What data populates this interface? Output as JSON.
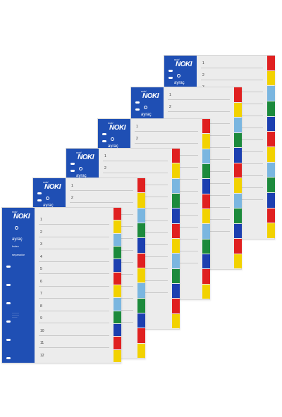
{
  "brand": {
    "logo_text": "NOKI",
    "logo_prefix": "noki",
    "band_color": "#1f4fb4"
  },
  "front_sheet": {
    "band_labels": [
      "ayraç",
      "Index",
      "separador"
    ],
    "row_numbers": [
      "1",
      "2",
      "3",
      "4",
      "5",
      "6",
      "7",
      "8",
      "9",
      "10",
      "11",
      "12"
    ]
  },
  "sheets": [
    {
      "label": "ayraç",
      "row_numbers": [
        "1",
        "2",
        "3"
      ]
    },
    {
      "label": "ayraç",
      "row_numbers": [
        "1",
        "2"
      ]
    },
    {
      "label": "ayraç",
      "row_numbers": [
        "1",
        "2"
      ]
    },
    {
      "label": "ayraç",
      "row_numbers": [
        "1",
        "2"
      ]
    },
    {
      "label": "ayraç",
      "row_numbers": [
        "1",
        "2"
      ]
    }
  ],
  "tab_colors": [
    "#e02020",
    "#f2d200",
    "#7ab6e0",
    "#1c8a3c",
    "#1c3fb0",
    "#e02020",
    "#f2d200",
    "#7ab6e0",
    "#1c8a3c",
    "#1c3fb0",
    "#e02020",
    "#f2d200"
  ],
  "icons": [
    "index-tab-icon",
    "punch-hole-icon"
  ]
}
